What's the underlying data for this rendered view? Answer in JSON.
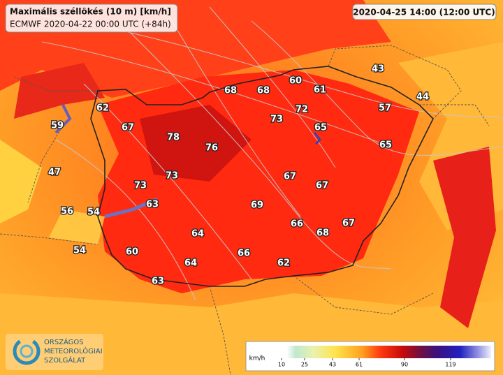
{
  "header": {
    "title": "Maximális széllökés (10 m) [km/h]",
    "subtitle": "ECMWF 2020-04-22 00:00 UTC (+84h)",
    "valid_time": "2020-04-25 14:00 (12:00 UTC)"
  },
  "stations": [
    68,
    68,
    60,
    61,
    43,
    44,
    62,
    72,
    57,
    73,
    59,
    67,
    65,
    78,
    76,
    65,
    47,
    73,
    67,
    67,
    73,
    63,
    69,
    56,
    54,
    66,
    67,
    68,
    64,
    54,
    60,
    66,
    64,
    62,
    63
  ],
  "legend": {
    "unit": "km/h",
    "ticks": [
      10,
      25,
      43,
      61,
      90,
      119
    ]
  },
  "logo": {
    "lines": [
      "ORSZÁGOS",
      "METEOROLÓGIAI",
      "SZOLGÁLAT"
    ]
  }
}
